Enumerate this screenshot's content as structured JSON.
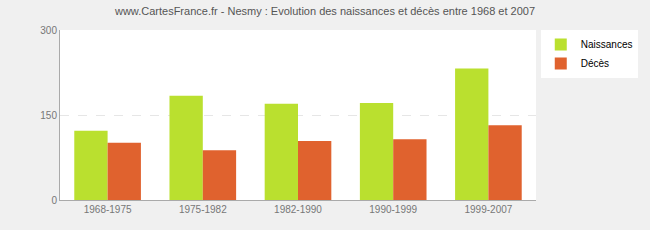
{
  "chart_data": {
    "type": "bar",
    "title": "www.CartesFrance.fr - Nesmy : Evolution des naissances et décès entre 1968 et 2007",
    "categories": [
      "1968-1975",
      "1975-1982",
      "1982-1990",
      "1990-1999",
      "1999-2007"
    ],
    "series": [
      {
        "name": "Naissances",
        "color": "#bae02f",
        "values": [
          122,
          184,
          170,
          171,
          232
        ]
      },
      {
        "name": "Décès",
        "color": "#e0622e",
        "values": [
          101,
          88,
          104,
          107,
          132
        ]
      }
    ],
    "ylim": [
      0,
      300
    ],
    "yticks": [
      0,
      150,
      300
    ],
    "grid": true,
    "legend": "top-right"
  }
}
